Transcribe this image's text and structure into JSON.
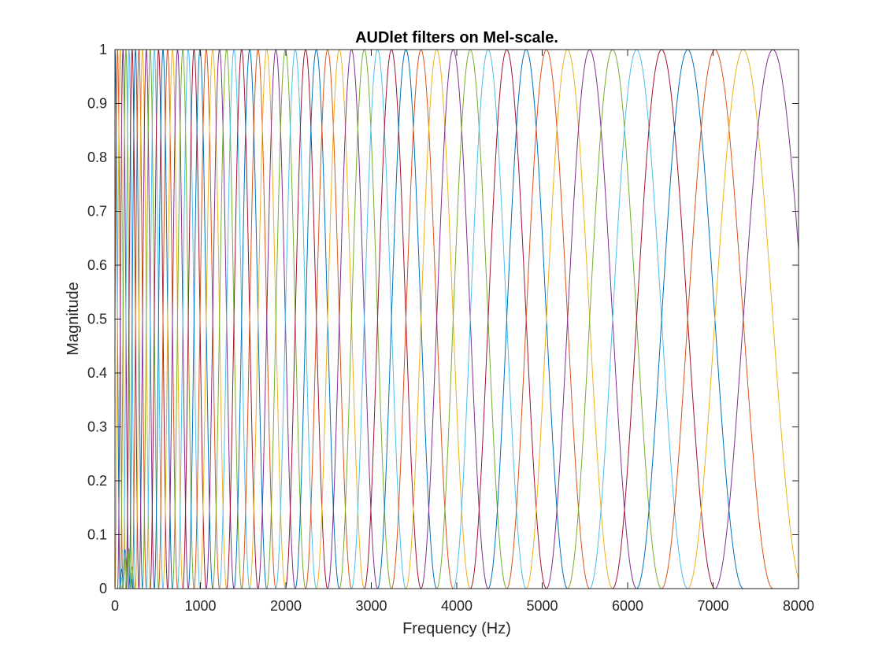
{
  "chart_data": {
    "type": "line",
    "title": "AUDlet filters on Mel-scale.",
    "xlabel": "Frequency (Hz)",
    "ylabel": "Magnitude",
    "xlim": [
      0,
      8000
    ],
    "ylim": [
      0,
      1
    ],
    "xticks": [
      0,
      1000,
      2000,
      3000,
      4000,
      5000,
      6000,
      7000,
      8000
    ],
    "xtick_labels": [
      "0",
      "1000",
      "2000",
      "3000",
      "4000",
      "5000",
      "6000",
      "7000",
      "8000"
    ],
    "yticks": [
      0,
      0.1,
      0.2,
      0.3,
      0.4,
      0.5,
      0.6,
      0.7,
      0.8,
      0.9,
      1
    ],
    "ytick_labels": [
      "0",
      "0.1",
      "0.2",
      "0.3",
      "0.4",
      "0.5",
      "0.6",
      "0.7",
      "0.8",
      "0.9",
      "1"
    ],
    "grid": false,
    "filter_shape": "raised-cosine",
    "scale": "mel",
    "filter_count": 60,
    "filter_centers_hz": [
      0,
      7700
    ],
    "filter_spacing_mel": 1,
    "filter_half_width_mel": 2,
    "low_frequency_ripple": {
      "x_range_hz": [
        50,
        230
      ],
      "peak_magnitude": 0.075
    },
    "color_order": [
      "#0072BD",
      "#D95319",
      "#EDB120",
      "#7E2F8E",
      "#77AC30",
      "#4DBEEE",
      "#A2142F"
    ]
  }
}
